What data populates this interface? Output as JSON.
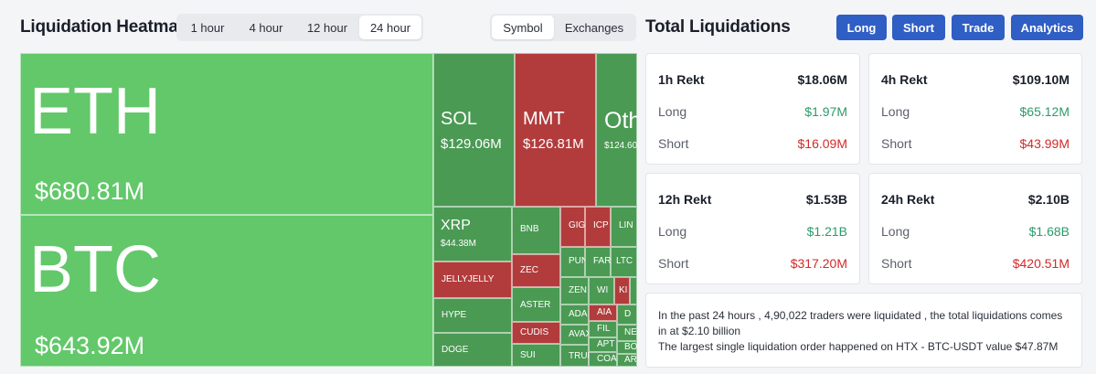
{
  "heatmap": {
    "title": "Liquidation Heatmap",
    "time_tabs": [
      "1 hour",
      "4 hour",
      "12 hour",
      "24 hour"
    ],
    "view_tabs": [
      "Symbol",
      "Exchanges"
    ],
    "cells": {
      "eth": {
        "symbol": "ETH",
        "value": "$680.81M"
      },
      "btc": {
        "symbol": "BTC",
        "value": "$643.92M"
      },
      "sol": {
        "symbol": "SOL",
        "value": "$129.06M"
      },
      "mmt": {
        "symbol": "MMT",
        "value": "$126.81M"
      },
      "oth": {
        "symbol": "Oth",
        "value": "$124.60"
      },
      "xrp": {
        "symbol": "XRP",
        "value": "$44.38M"
      },
      "jelly": {
        "symbol": "JELLYJELLY"
      },
      "hype": {
        "symbol": "HYPE"
      },
      "doge": {
        "symbol": "DOGE"
      },
      "bnb": {
        "symbol": "BNB"
      },
      "zec": {
        "symbol": "ZEC"
      },
      "aster": {
        "symbol": "ASTER"
      },
      "cudis": {
        "symbol": "CUDIS"
      },
      "sui": {
        "symbol": "SUI"
      },
      "gig": {
        "symbol": "GIG"
      },
      "icp": {
        "symbol": "ICP"
      },
      "lin": {
        "symbol": "LIN"
      },
      "pun": {
        "symbol": "PUN"
      },
      "far": {
        "symbol": "FAR"
      },
      "ltc": {
        "symbol": "LTC"
      },
      "zen": {
        "symbol": "ZEN"
      },
      "wi": {
        "symbol": "WI"
      },
      "ki": {
        "symbol": "KI"
      },
      "ada": {
        "symbol": "ADA"
      },
      "aia": {
        "symbol": "AIA"
      },
      "d1": {
        "symbol": "D"
      },
      "avax": {
        "symbol": "AVAX"
      },
      "fil": {
        "symbol": "FIL"
      },
      "ne": {
        "symbol": "NE"
      },
      "trun": {
        "symbol": "TRUN"
      },
      "apt": {
        "symbol": "APT"
      },
      "bo": {
        "symbol": "BO"
      },
      "coa": {
        "symbol": "COA"
      },
      "ar": {
        "symbol": "AR"
      }
    }
  },
  "totals": {
    "title": "Total Liquidations",
    "buttons": [
      "Long",
      "Short",
      "Trade",
      "Analytics"
    ],
    "cards": [
      {
        "label": "1h Rekt",
        "total": "$18.06M",
        "long_label": "Long",
        "long": "$1.97M",
        "short_label": "Short",
        "short": "$16.09M"
      },
      {
        "label": "4h Rekt",
        "total": "$109.10M",
        "long_label": "Long",
        "long": "$65.12M",
        "short_label": "Short",
        "short": "$43.99M"
      },
      {
        "label": "12h Rekt",
        "total": "$1.53B",
        "long_label": "Long",
        "long": "$1.21B",
        "short_label": "Short",
        "short": "$317.20M"
      },
      {
        "label": "24h Rekt",
        "total": "$2.10B",
        "long_label": "Long",
        "long": "$1.68B",
        "short_label": "Short",
        "short": "$420.51M"
      }
    ],
    "summary_line1": "In the past 24 hours , 4,90,022 traders were liquidated , the total liquidations comes in at $2.10 billion",
    "summary_line2": "The largest single liquidation order happened on HTX - BTC-USDT value $47.87M"
  },
  "colors": {
    "long": "#2e9a6a",
    "short": "#d22a2a",
    "accent": "#2f5ec4"
  }
}
